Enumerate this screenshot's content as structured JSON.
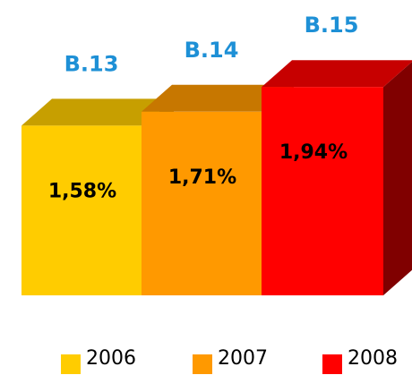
{
  "chart_data": {
    "type": "bar3d",
    "categories": [
      "B.13",
      "B.14",
      "B.15"
    ],
    "values": [
      1.58,
      1.71,
      1.94
    ],
    "value_labels": [
      "1,58%",
      "1,71%",
      "1,94%"
    ],
    "series": [
      {
        "name": "2006",
        "color": "#ffcc00"
      },
      {
        "name": "2007",
        "color": "#ff9900"
      },
      {
        "name": "2008",
        "color": "#ff0000"
      }
    ]
  }
}
